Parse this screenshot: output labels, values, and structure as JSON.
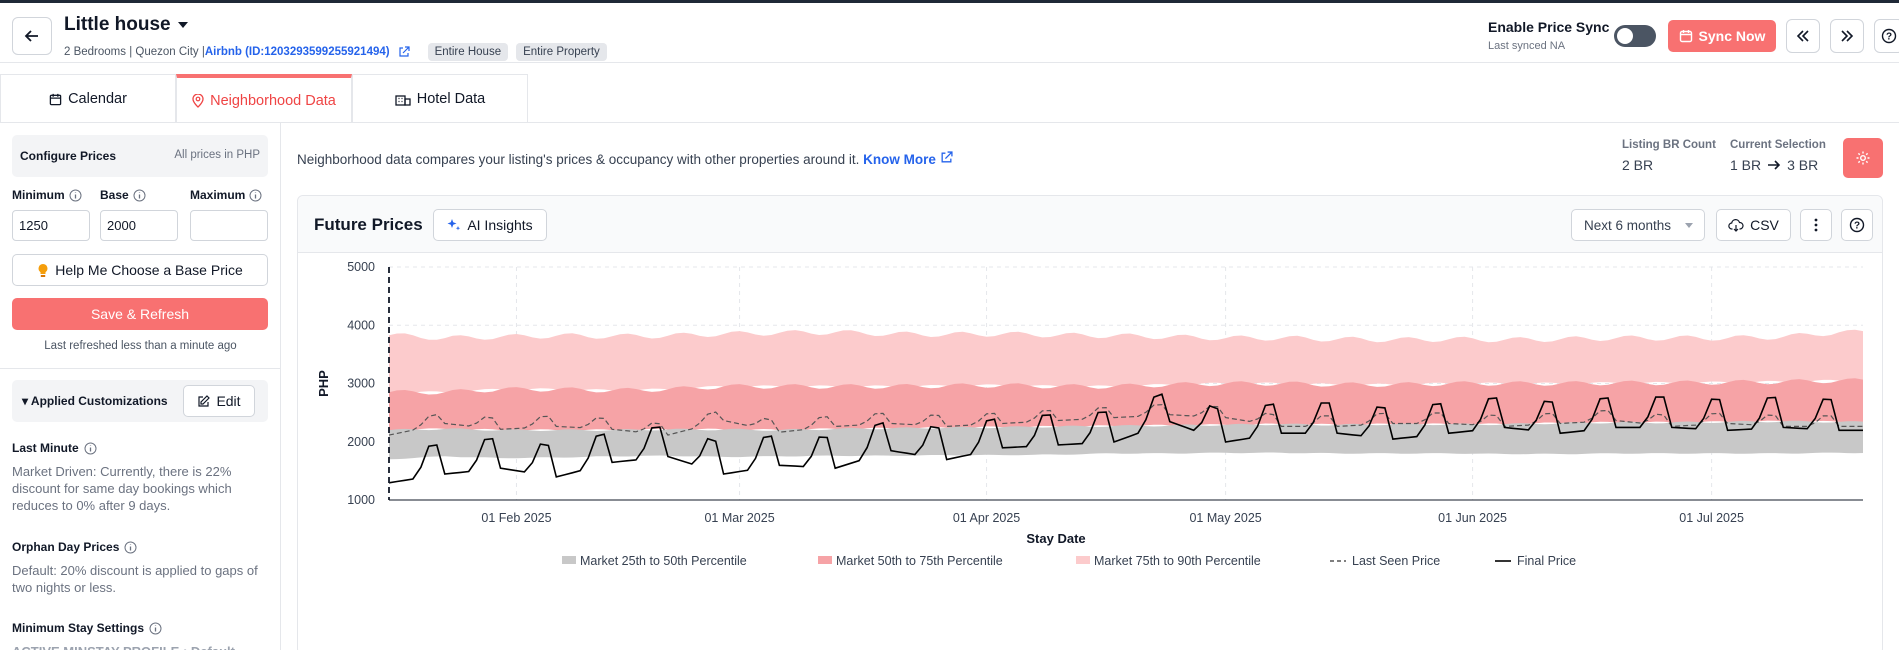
{
  "header": {
    "title": "Little house",
    "sub_prefix": "2 Bedrooms | Quezon City | ",
    "sub_link": "Airbnb (ID:1203293599255921494)",
    "tags": [
      "Entire House",
      "Entire Property"
    ],
    "sync_label": "Enable Price Sync",
    "sync_sub": "Last synced NA",
    "sync_now": "Sync Now"
  },
  "tabs": [
    {
      "label": "Calendar"
    },
    {
      "label": "Neighborhood Data"
    },
    {
      "label": "Hotel Data"
    }
  ],
  "sidebar": {
    "configure_title": "Configure Prices",
    "configure_note": "All prices in PHP",
    "min_label": "Minimum",
    "base_label": "Base",
    "max_label": "Maximum",
    "min_value": "1250",
    "base_value": "2000",
    "max_value": "",
    "help_button": "Help Me Choose a Base Price",
    "save_button": "Save & Refresh",
    "refresh_note": "Last refreshed less than a minute ago",
    "customizations_title": "Applied Customizations",
    "edit_button": "Edit",
    "last_minute_title": "Last Minute",
    "last_minute_text": "Market Driven: Currently, there is 22% discount for same day bookings which reduces to 0% after 9 days.",
    "orphan_title": "Orphan Day Prices",
    "orphan_text": "Default: 20% discount is applied to gaps of two nights or less.",
    "minstay_title": "Minimum Stay Settings",
    "minstay_text": "ACTIVE MINSTAY PROFILE : Default"
  },
  "main": {
    "info_text": "Neighborhood data compares your listing's prices & occupancy with other properties around it.",
    "know_more": "Know More",
    "br_count_label": "Listing BR Count",
    "br_count_value": "2 BR",
    "selection_label": "Current Selection",
    "selection_from": "1 BR",
    "selection_to": "3 BR",
    "chart_title": "Future Prices",
    "ai_insights": "AI Insights",
    "range_select": "Next 6 months",
    "csv": "CSV"
  },
  "colors": {
    "accent": "#f87171",
    "p25_50": "#c8c8c8",
    "p50_75": "#f6a3a6",
    "p75_90": "#fccbcc",
    "link": "#2563eb"
  },
  "chart_data": {
    "type": "area",
    "xlabel": "Stay Date",
    "ylabel": "PHP",
    "ylim": [
      1000,
      5000
    ],
    "yticks": [
      1000,
      2000,
      3000,
      4000,
      5000
    ],
    "xticks": [
      "01 Feb 2025",
      "01 Mar 2025",
      "01 Apr 2025",
      "01 May 2025",
      "01 Jun 2025",
      "01 Jul 2025"
    ],
    "x_start": "2025-01-16",
    "x_end": "2025-07-20",
    "grid": true,
    "legend": "bottom",
    "weekly_points": [
      "2025-01-16",
      "2025-01-23",
      "2025-01-30",
      "2025-02-06",
      "2025-02-13",
      "2025-02-20",
      "2025-02-27",
      "2025-03-06",
      "2025-03-13",
      "2025-03-20",
      "2025-03-27",
      "2025-04-03",
      "2025-04-10",
      "2025-04-17",
      "2025-04-24",
      "2025-05-01",
      "2025-05-08",
      "2025-05-15",
      "2025-05-22",
      "2025-05-29",
      "2025-06-05",
      "2025-06-12",
      "2025-06-19",
      "2025-06-26",
      "2025-07-03",
      "2025-07-10",
      "2025-07-17"
    ],
    "series": [
      {
        "name": "Market 25th to 50th Percentile",
        "low": [
          1700,
          1750,
          1720,
          1730,
          1750,
          1760,
          1740,
          1750,
          1760,
          1760,
          1770,
          1770,
          1780,
          1800,
          1800,
          1810,
          1810,
          1800,
          1800,
          1800,
          1790,
          1790,
          1800,
          1800,
          1800,
          1800,
          1810
        ],
        "high": [
          2200,
          2220,
          2200,
          2200,
          2200,
          2210,
          2210,
          2200,
          2220,
          2230,
          2240,
          2250,
          2260,
          2270,
          2280,
          2290,
          2300,
          2290,
          2300,
          2300,
          2300,
          2320,
          2330,
          2330,
          2340,
          2350,
          2340
        ]
      },
      {
        "name": "Market 50th to 75th Percentile",
        "low": [
          2200,
          2220,
          2200,
          2200,
          2200,
          2210,
          2210,
          2200,
          2220,
          2230,
          2240,
          2250,
          2260,
          2270,
          2280,
          2290,
          2300,
          2290,
          2300,
          2300,
          2300,
          2320,
          2330,
          2330,
          2340,
          2350,
          2340
        ],
        "high": [
          2850,
          2850,
          2900,
          2900,
          2880,
          2900,
          2950,
          2950,
          2950,
          2950,
          2960,
          2970,
          2950,
          2950,
          2980,
          3000,
          3000,
          2980,
          2980,
          3000,
          3000,
          3000,
          3010,
          3010,
          3020,
          3030,
          3050
        ]
      },
      {
        "name": "Market 75th to 90th Percentile",
        "low": [
          2850,
          2850,
          2900,
          2900,
          2880,
          2900,
          2950,
          2950,
          2950,
          2950,
          2960,
          2970,
          2950,
          2950,
          2980,
          3000,
          3000,
          2980,
          2980,
          3000,
          3000,
          3000,
          3010,
          3010,
          3020,
          3030,
          3050
        ],
        "high": [
          3830,
          3780,
          3800,
          3820,
          3810,
          3820,
          3850,
          3870,
          3880,
          3850,
          3840,
          3850,
          3830,
          3820,
          3800,
          3780,
          3780,
          3760,
          3750,
          3760,
          3750,
          3760,
          3780,
          3780,
          3780,
          3800,
          3880
        ]
      },
      {
        "name": "Last Seen Price",
        "values": [
          2150,
          2350,
          2250,
          2300,
          2250,
          2150,
          2400,
          2200,
          2300,
          2350,
          2300,
          2350,
          2400,
          2450,
          2500,
          2450,
          2300,
          2300,
          2350,
          2350,
          2300,
          2350,
          2400,
          2300,
          2350,
          2300,
          2300
        ]
      },
      {
        "name": "Final Price",
        "values": [
          1400,
          1550,
          1650,
          1500,
          1750,
          1850,
          1550,
          1700,
          1650,
          1950,
          1800,
          2000,
          2050,
          2100,
          2450,
          2100,
          2250,
          2250,
          2150,
          2250,
          2350,
          2250,
          2350,
          2350,
          2300,
          2350,
          2300
        ]
      }
    ]
  }
}
